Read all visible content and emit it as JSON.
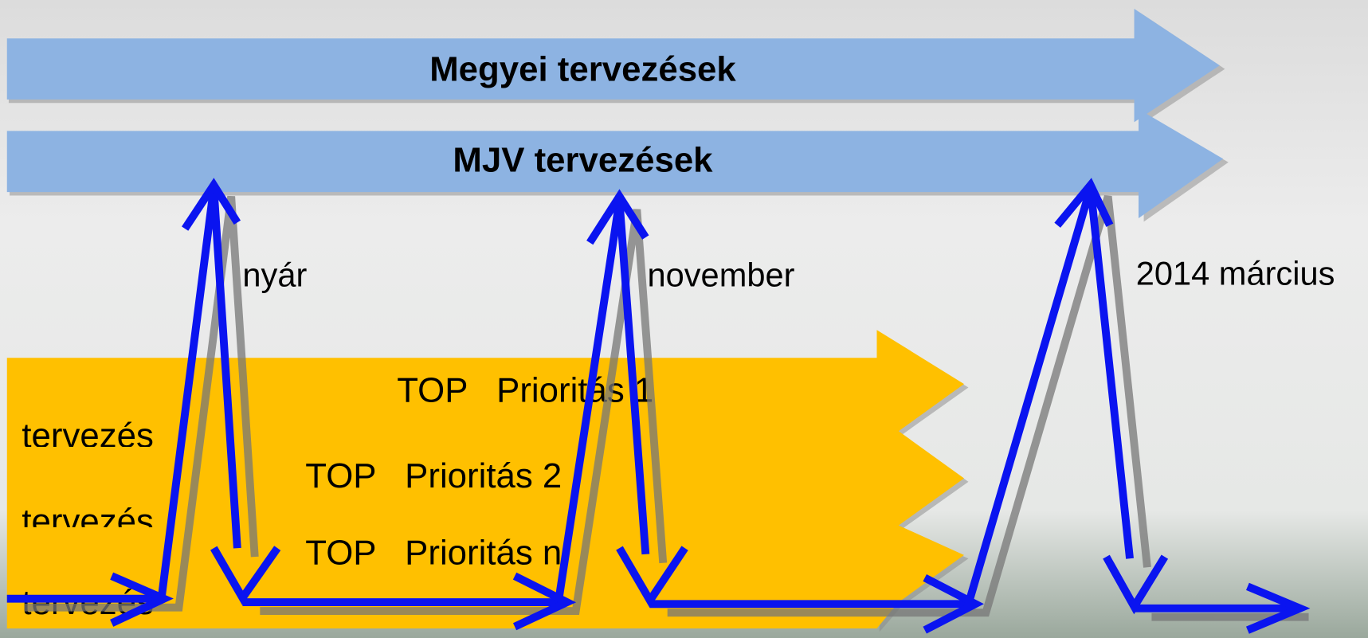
{
  "banners": [
    "Megyei tervezések",
    "MJV tervezések"
  ],
  "milestones": [
    "nyár",
    "november",
    "2014 március"
  ],
  "priorities": [
    "TOP   Prioritás 1",
    "TOP   Prioritás 2",
    "TOP   Prioritás n"
  ],
  "row_labels": [
    "tervezés",
    "tervezés",
    "tervezés"
  ]
}
